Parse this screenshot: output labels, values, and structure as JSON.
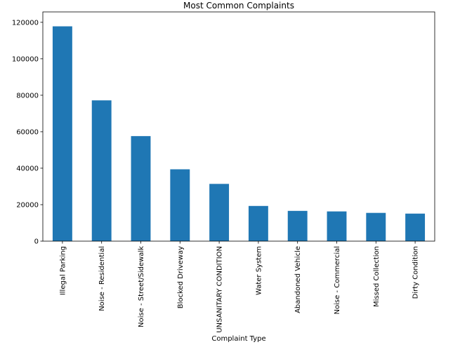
{
  "chart_data": {
    "type": "bar",
    "title": "Most Common Complaints",
    "xlabel": "Complaint Type",
    "ylabel": "",
    "categories": [
      "Illegal Parking",
      "Noise - Residential",
      "Noise - Street/Sidewalk",
      "Blocked Driveway",
      "UNSANITARY CONDITION",
      "Water System",
      "Abandoned Vehicle",
      "Noise - Commercial",
      "Missed Collection",
      "Dirty Condition"
    ],
    "values": [
      117800,
      77200,
      57600,
      39400,
      31400,
      19300,
      16600,
      16300,
      15500,
      15100
    ],
    "ylim": [
      0,
      125700
    ],
    "yticks": [
      0,
      20000,
      40000,
      60000,
      80000,
      100000,
      120000
    ],
    "grid": false,
    "legend": "none",
    "bar_color": "#1f77b4"
  }
}
